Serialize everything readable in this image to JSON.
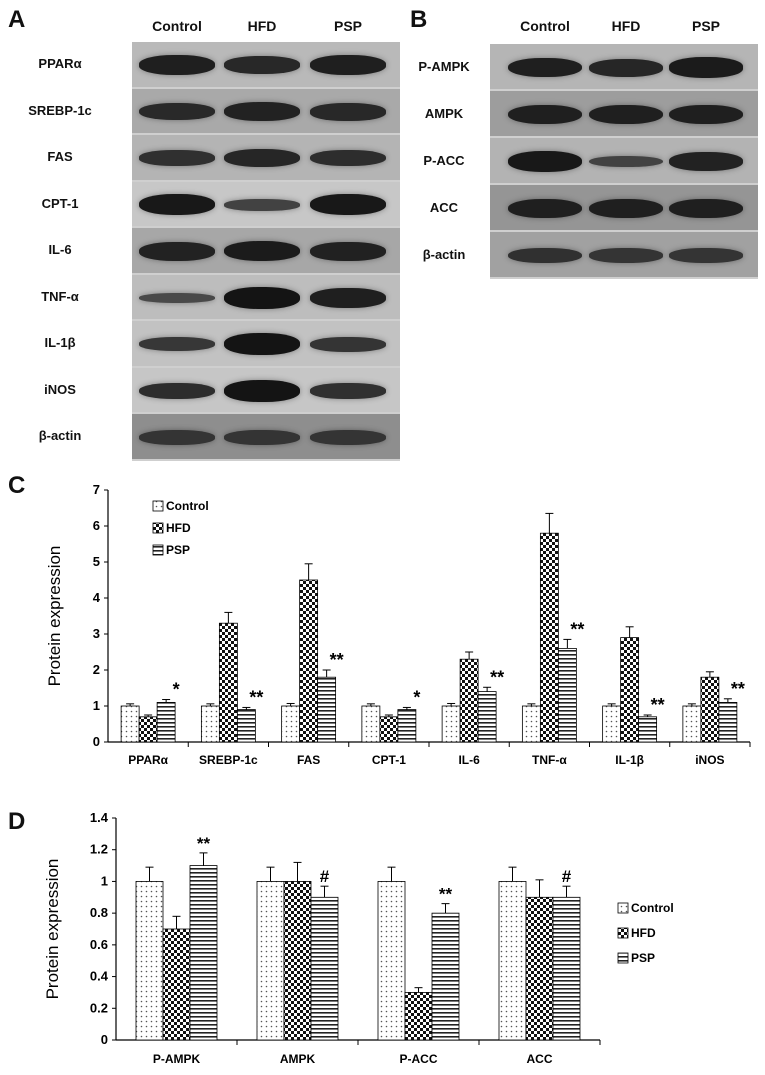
{
  "panel_a": {
    "letter": "A",
    "lanes": [
      "Control",
      "HFD",
      "PSP"
    ],
    "rows": [
      {
        "label": "PPARα",
        "bg": "#b9b9b9",
        "band": [
          0.85,
          0.72,
          0.85
        ]
      },
      {
        "label": "SREBP-1c",
        "bg": "#a9a9a9",
        "band": [
          0.7,
          0.8,
          0.72
        ]
      },
      {
        "label": "FAS",
        "bg": "#b4b4b4",
        "band": [
          0.6,
          0.75,
          0.65
        ]
      },
      {
        "label": "CPT-1",
        "bg": "#c7c7c7",
        "band": [
          0.95,
          0.35,
          0.95
        ]
      },
      {
        "label": "IL-6",
        "bg": "#a7a7a7",
        "band": [
          0.8,
          0.9,
          0.82
        ]
      },
      {
        "label": "TNF-α",
        "bg": "#bdbdbd",
        "band": [
          0.25,
          1.0,
          0.85
        ]
      },
      {
        "label": "IL-1β",
        "bg": "#c2c2c2",
        "band": [
          0.5,
          1.0,
          0.55
        ]
      },
      {
        "label": "iNOS",
        "bg": "#c6c6c6",
        "band": [
          0.65,
          1.0,
          0.6
        ]
      },
      {
        "label": "β-actin",
        "bg": "#8e8e8e",
        "band": [
          0.55,
          0.55,
          0.55
        ]
      }
    ]
  },
  "panel_b": {
    "letter": "B",
    "lanes": [
      "Control",
      "HFD",
      "PSP"
    ],
    "rows": [
      {
        "label": "P-AMPK",
        "bg": "#b5b5b5",
        "band": [
          0.85,
          0.75,
          0.9
        ]
      },
      {
        "label": "AMPK",
        "bg": "#9d9d9d",
        "band": [
          0.85,
          0.85,
          0.85
        ]
      },
      {
        "label": "P-ACC",
        "bg": "#b3b3b3",
        "band": [
          0.95,
          0.35,
          0.8
        ]
      },
      {
        "label": "ACC",
        "bg": "#959595",
        "band": [
          0.85,
          0.85,
          0.85
        ]
      },
      {
        "label": "β-actin",
        "bg": "#a1a1a1",
        "band": [
          0.6,
          0.55,
          0.55
        ]
      }
    ]
  },
  "chart_data": [
    {
      "panel": "C",
      "type": "bar",
      "ylabel": "Protein expression",
      "ylim": [
        0,
        7
      ],
      "yticks": [
        "0",
        "1",
        "2",
        "3",
        "4",
        "5",
        "6",
        "7"
      ],
      "legend_position": "top-left",
      "categories": [
        "PPARα",
        "SREBP-1c",
        "FAS",
        "CPT-1",
        "IL-6",
        "TNF-α",
        "IL-1β",
        "iNOS"
      ],
      "series": [
        {
          "name": "Control",
          "values": [
            1.0,
            1.0,
            1.0,
            1.0,
            1.0,
            1.0,
            1.0,
            1.0
          ],
          "errors": [
            0.06,
            0.06,
            0.07,
            0.06,
            0.07,
            0.06,
            0.06,
            0.06
          ]
        },
        {
          "name": "HFD",
          "values": [
            0.7,
            3.3,
            4.5,
            0.7,
            2.3,
            5.8,
            2.9,
            1.8
          ],
          "errors": [
            0.05,
            0.3,
            0.45,
            0.05,
            0.2,
            0.55,
            0.3,
            0.15
          ]
        },
        {
          "name": "PSP",
          "values": [
            1.1,
            0.9,
            1.8,
            0.9,
            1.4,
            2.6,
            0.7,
            1.1
          ],
          "errors": [
            0.08,
            0.06,
            0.2,
            0.06,
            0.12,
            0.25,
            0.05,
            0.1
          ]
        }
      ],
      "annotations": [
        "*",
        "**",
        "**",
        "*",
        "**",
        "**",
        "**",
        "**"
      ]
    },
    {
      "panel": "D",
      "type": "bar",
      "ylabel": "Protein expression",
      "ylim": [
        0,
        1.4
      ],
      "yticks": [
        "0",
        "0.2",
        "0.4",
        "0.6",
        "0.8",
        "1",
        "1.2",
        "1.4"
      ],
      "legend_position": "right",
      "categories": [
        "P-AMPK",
        "AMPK",
        "P-ACC",
        "ACC"
      ],
      "series": [
        {
          "name": "Control",
          "values": [
            1.0,
            1.0,
            1.0,
            1.0
          ],
          "errors": [
            0.09,
            0.09,
            0.09,
            0.09
          ]
        },
        {
          "name": "HFD",
          "values": [
            0.7,
            1.0,
            0.3,
            0.9
          ],
          "errors": [
            0.08,
            0.12,
            0.03,
            0.11
          ]
        },
        {
          "name": "PSP",
          "values": [
            1.1,
            0.9,
            0.8,
            0.9
          ],
          "errors": [
            0.08,
            0.07,
            0.06,
            0.07
          ]
        }
      ],
      "annotations": [
        "**",
        "#",
        "**",
        "#"
      ]
    }
  ]
}
